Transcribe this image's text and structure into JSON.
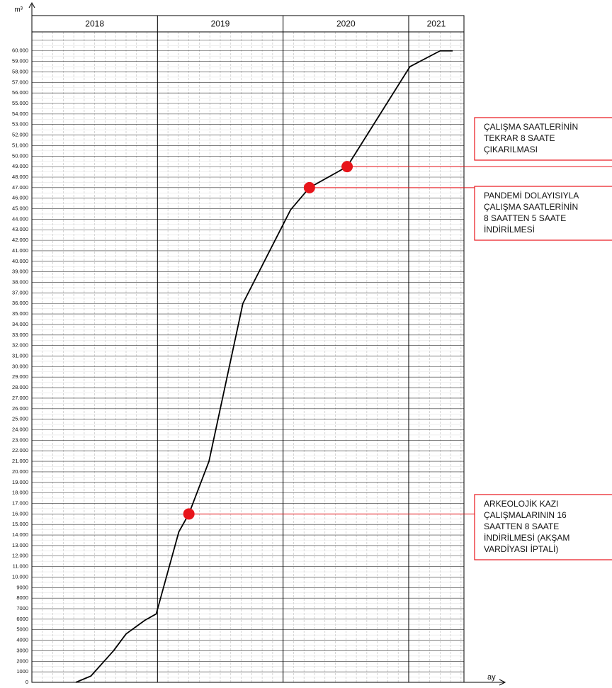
{
  "chart_data": {
    "type": "line",
    "y_label": "m³",
    "x_label": "ay",
    "year_bands": [
      2018,
      2019,
      2020,
      2021
    ],
    "x": [
      2018.35,
      2018.47,
      2018.65,
      2018.75,
      2018.9,
      2018.99,
      2019.17,
      2019.25,
      2019.41,
      2019.68,
      2020.06,
      2020.21,
      2020.51,
      2021.01,
      2021.25,
      2021.35
    ],
    "series": [
      {
        "color": "#000000",
        "values": [
          0,
          600,
          3000,
          4600,
          5900,
          6500,
          14300,
          16000,
          21000,
          36000,
          44900,
          47000,
          49000,
          58500,
          60000,
          60000
        ]
      }
    ],
    "xlim": [
      2018,
      2021.44
    ],
    "ylim": [
      0,
      61800
    ],
    "yticks": [
      0,
      1000,
      2000,
      3000,
      4000,
      5000,
      6000,
      7000,
      8000,
      9000,
      {
        "value": 10000,
        "label": "10.000"
      },
      {
        "value": 11000,
        "label": "11.000"
      },
      {
        "value": 12000,
        "label": "12.000"
      },
      {
        "value": 13000,
        "label": "13.000"
      },
      {
        "value": 14000,
        "label": "14.000"
      },
      {
        "value": 15000,
        "label": "15.000"
      },
      {
        "value": 16000,
        "label": "16.000"
      },
      {
        "value": 17000,
        "label": "17.000"
      },
      {
        "value": 18000,
        "label": "18.000"
      },
      {
        "value": 19000,
        "label": "19.000"
      },
      {
        "value": 20000,
        "label": "20.000"
      },
      {
        "value": 21000,
        "label": "21.000"
      },
      {
        "value": 22000,
        "label": "22.000"
      },
      {
        "value": 23000,
        "label": "23.000"
      },
      {
        "value": 24000,
        "label": "24.000"
      },
      {
        "value": 25000,
        "label": "25.000"
      },
      {
        "value": 26000,
        "label": "26.000"
      },
      {
        "value": 27000,
        "label": "27.000"
      },
      {
        "value": 28000,
        "label": "28.000"
      },
      {
        "value": 29000,
        "label": "29.000"
      },
      {
        "value": 30000,
        "label": "30.000"
      },
      {
        "value": 31000,
        "label": "31.000"
      },
      {
        "value": 32000,
        "label": "32.000"
      },
      {
        "value": 33000,
        "label": "33.000"
      },
      {
        "value": 34000,
        "label": "34.000"
      },
      {
        "value": 35000,
        "label": "35.000"
      },
      {
        "value": 36000,
        "label": "36.000"
      },
      {
        "value": 37000,
        "label": "37.000"
      },
      {
        "value": 38000,
        "label": "38.000"
      },
      {
        "value": 39000,
        "label": "39.000"
      },
      {
        "value": 40000,
        "label": "40.000"
      },
      {
        "value": 41000,
        "label": "41.000"
      },
      {
        "value": 42000,
        "label": "42.000"
      },
      {
        "value": 43000,
        "label": "43.000"
      },
      {
        "value": 44000,
        "label": "44.000"
      },
      {
        "value": 45000,
        "label": "45.000"
      },
      {
        "value": 46000,
        "label": "46.000"
      },
      {
        "value": 47000,
        "label": "47.000"
      },
      {
        "value": 48000,
        "label": "48.000"
      },
      {
        "value": 49000,
        "label": "49.000"
      },
      {
        "value": 50000,
        "label": "50.000"
      },
      {
        "value": 51000,
        "label": "51.000"
      },
      {
        "value": 52000,
        "label": "52.000"
      },
      {
        "value": 53000,
        "label": "53.000"
      },
      {
        "value": 54000,
        "label": "54.000"
      },
      {
        "value": 55000,
        "label": "55.000"
      },
      {
        "value": 56000,
        "label": "56.000"
      },
      {
        "value": 57000,
        "label": "57.000"
      },
      {
        "value": 58000,
        "label": "58.000"
      },
      {
        "value": 59000,
        "label": "59.000"
      },
      {
        "value": 60000,
        "label": "60.000"
      }
    ],
    "grid": true,
    "annotations": [
      {
        "x": 2020.51,
        "y": 49000,
        "color": "#e8141a",
        "text": [
          "ÇALIŞMA SAATLERİNİN",
          "TEKRAR 8 SAATE",
          "ÇIKARILMASI"
        ]
      },
      {
        "x": 2020.21,
        "y": 47000,
        "color": "#e8141a",
        "text": [
          "PANDEMİ DOLAYISIYLA",
          "ÇALIŞMA SAATLERİNİN",
          "8 SAATTEN 5 SAATE",
          "İNDİRİLMESİ"
        ]
      },
      {
        "x": 2019.25,
        "y": 16000,
        "color": "#e8141a",
        "text": [
          "ARKEOLOJİK KAZI",
          "ÇALIŞMALARININ 16",
          "SAATTEN 8 SAATE",
          "İNDİRİLMESİ (AKŞAM",
          "VARDİYASI İPTALİ)"
        ]
      }
    ]
  }
}
